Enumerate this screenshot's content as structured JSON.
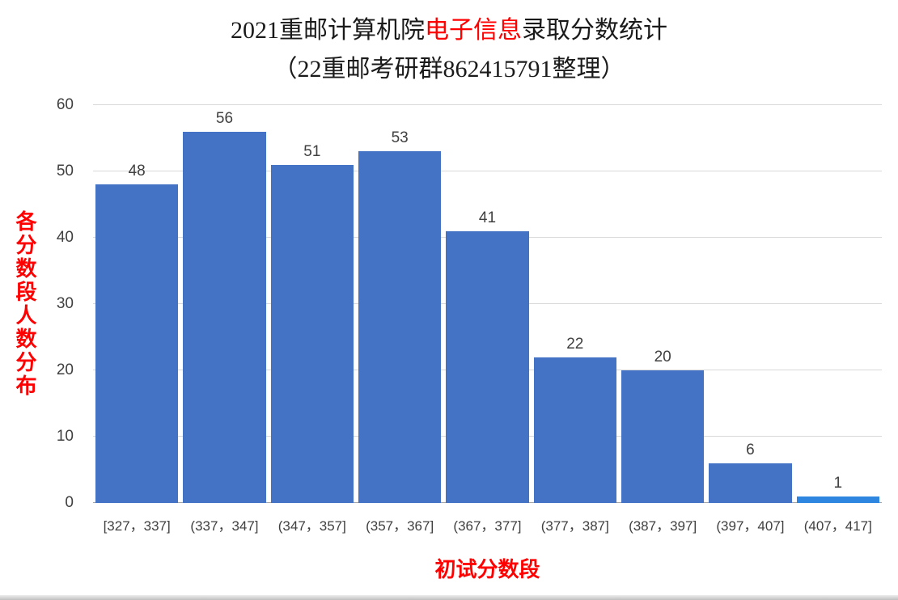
{
  "title": {
    "prefix": "2021重邮计算机院",
    "highlight": "电子信息",
    "suffix": "录取分数统计",
    "line2": "（22重邮考研群862415791整理）",
    "highlight_color": "#ff0000"
  },
  "chart_data": {
    "type": "bar",
    "title": "2021重邮计算机院电子信息录取分数统计（22重邮考研群862415791整理）",
    "categories": [
      "[327，337]",
      "(337，347]",
      "(347，357]",
      "(357，367]",
      "(367，377]",
      "(377，387]",
      "(387，397]",
      "(397，407]",
      "(407，417]"
    ],
    "values": [
      48,
      56,
      51,
      53,
      41,
      22,
      20,
      6,
      1
    ],
    "xlabel": "初试分数段",
    "ylabel": "各分数段人数分布",
    "ylim": [
      0,
      60
    ],
    "yticks": [
      0,
      10,
      20,
      30,
      40,
      50,
      60
    ],
    "grid": true,
    "legend": false,
    "bar_color": "#4472c4",
    "last_bar_color": "#2f86e0",
    "value_label_color": "#404040",
    "tick_label_color": "#404040",
    "gridline_color": "#d9d9d9",
    "axis_line_color": "#a6a6a6",
    "axis_title_color": "#ff0000"
  }
}
